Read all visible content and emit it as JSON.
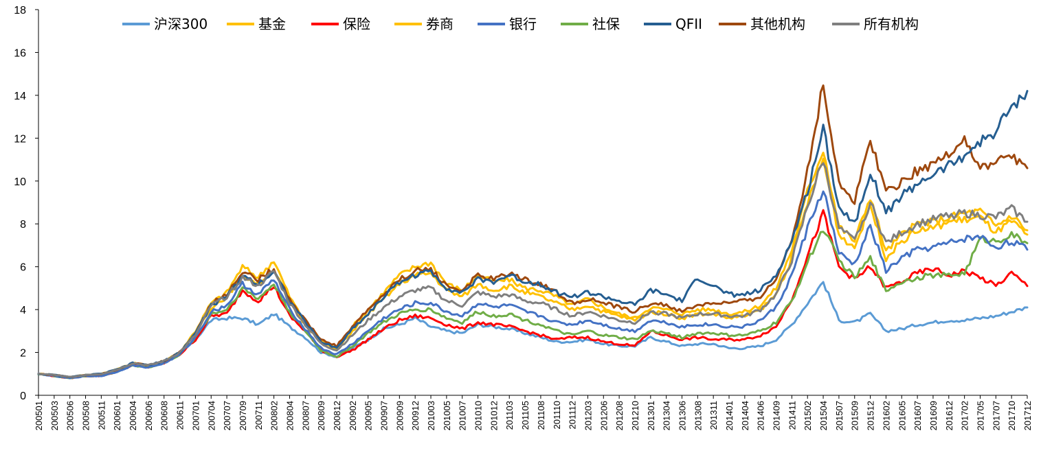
{
  "chart_data": {
    "type": "line",
    "title": "",
    "xlabel": "",
    "ylabel": "",
    "ylim": [
      0,
      18
    ],
    "yticks": [
      "0",
      "2",
      "4",
      "6",
      "8",
      "10",
      "12",
      "14",
      "16",
      "18"
    ],
    "grid": false,
    "legend_position": "top",
    "x_tick_labels": [
      "200501",
      "200503",
      "200506",
      "200508",
      "200511",
      "200601",
      "200604",
      "200606",
      "200608",
      "200611",
      "200701",
      "200704",
      "200707",
      "200709",
      "200711",
      "200802",
      "200804",
      "200807",
      "200809",
      "200812",
      "200902",
      "200905",
      "200907",
      "200909",
      "200912",
      "201003",
      "201005",
      "201007",
      "201010",
      "201012",
      "201103",
      "201105",
      "201108",
      "201110",
      "201112",
      "201203",
      "201206",
      "201208",
      "201210",
      "201301",
      "201304",
      "201306",
      "201308",
      "201311",
      "201401",
      "201404",
      "201406",
      "201409",
      "201411",
      "201502",
      "201504",
      "201507",
      "201509",
      "201512",
      "201602",
      "201605",
      "201607",
      "201609",
      "201612",
      "201702",
      "201705",
      "201707",
      "201710",
      "201712"
    ],
    "series": [
      {
        "name": "沪深300",
        "color": "#5B9BD5",
        "values": [
          1.0,
          0.9,
          0.8,
          0.9,
          0.9,
          1.1,
          1.4,
          1.3,
          1.5,
          1.9,
          2.6,
          3.5,
          3.6,
          3.6,
          3.3,
          3.8,
          3.2,
          2.7,
          2.0,
          1.8,
          2.2,
          2.6,
          3.1,
          3.3,
          3.6,
          3.2,
          3.0,
          2.9,
          3.3,
          3.2,
          3.1,
          2.9,
          2.7,
          2.5,
          2.5,
          2.6,
          2.4,
          2.3,
          2.3,
          2.7,
          2.5,
          2.3,
          2.4,
          2.4,
          2.2,
          2.2,
          2.3,
          2.6,
          3.3,
          4.3,
          5.3,
          3.5,
          3.4,
          3.8,
          3.0,
          3.1,
          3.3,
          3.4,
          3.5,
          3.5,
          3.6,
          3.7,
          3.9,
          4.1
        ]
      },
      {
        "name": "基金",
        "color": "#FFC000",
        "values": [
          1.0,
          0.95,
          0.85,
          0.95,
          1.0,
          1.2,
          1.5,
          1.4,
          1.6,
          2.0,
          3.0,
          4.3,
          4.8,
          6.0,
          5.5,
          6.3,
          4.6,
          3.4,
          2.6,
          2.2,
          3.2,
          4.0,
          4.8,
          5.6,
          6.0,
          6.2,
          5.2,
          4.9,
          5.6,
          5.3,
          5.4,
          5.0,
          4.9,
          4.6,
          4.2,
          4.5,
          4.1,
          3.8,
          3.6,
          4.1,
          4.0,
          3.8,
          4.0,
          4.0,
          3.8,
          3.9,
          4.2,
          5.0,
          6.8,
          9.5,
          11.5,
          7.9,
          7.2,
          9.3,
          6.7,
          7.5,
          8.0,
          8.1,
          8.3,
          8.5,
          8.6,
          7.9,
          8.4,
          7.7
        ]
      },
      {
        "name": "保险",
        "color": "#FF0000",
        "values": [
          1.0,
          0.9,
          0.8,
          0.9,
          0.9,
          1.1,
          1.4,
          1.3,
          1.5,
          1.9,
          2.6,
          3.7,
          3.8,
          4.9,
          4.4,
          5.1,
          3.7,
          3.0,
          2.1,
          1.8,
          2.1,
          2.6,
          3.1,
          3.5,
          3.7,
          3.6,
          3.3,
          3.1,
          3.4,
          3.3,
          3.2,
          3.0,
          2.8,
          2.6,
          2.7,
          2.7,
          2.5,
          2.4,
          2.3,
          3.0,
          2.8,
          2.6,
          2.7,
          2.6,
          2.6,
          2.6,
          2.8,
          3.2,
          4.5,
          6.5,
          8.5,
          6.0,
          5.4,
          6.0,
          5.0,
          5.3,
          5.7,
          5.9,
          5.6,
          5.8,
          5.5,
          5.1,
          5.7,
          5.1
        ]
      },
      {
        "name": "券商",
        "color": "#FFC000",
        "values": [
          1.0,
          0.95,
          0.85,
          0.95,
          1.0,
          1.2,
          1.5,
          1.4,
          1.6,
          2.0,
          2.9,
          4.1,
          4.6,
          5.6,
          5.2,
          5.9,
          4.3,
          3.3,
          2.5,
          2.1,
          3.0,
          3.8,
          4.5,
          5.2,
          5.6,
          5.7,
          4.9,
          4.6,
          5.2,
          4.9,
          5.1,
          4.8,
          4.6,
          4.3,
          4.0,
          4.2,
          3.9,
          3.7,
          3.5,
          3.9,
          3.8,
          3.6,
          3.8,
          3.8,
          3.6,
          3.7,
          4.0,
          4.7,
          6.4,
          9.0,
          11.0,
          7.5,
          6.9,
          8.9,
          6.4,
          7.2,
          7.7,
          7.8,
          8.1,
          8.2,
          8.3,
          7.6,
          8.1,
          7.5
        ]
      },
      {
        "name": "银行",
        "color": "#4472C4",
        "values": [
          1.0,
          0.9,
          0.8,
          0.9,
          0.9,
          1.1,
          1.4,
          1.3,
          1.5,
          1.9,
          2.7,
          3.9,
          4.2,
          5.2,
          4.7,
          5.4,
          4.0,
          3.1,
          2.2,
          1.9,
          2.4,
          3.0,
          3.6,
          4.0,
          4.3,
          4.3,
          3.9,
          3.7,
          4.3,
          4.1,
          4.2,
          3.9,
          3.7,
          3.4,
          3.3,
          3.5,
          3.3,
          3.1,
          3.0,
          3.5,
          3.4,
          3.2,
          3.3,
          3.3,
          3.2,
          3.2,
          3.5,
          4.1,
          5.6,
          7.8,
          9.6,
          6.6,
          6.1,
          7.9,
          5.8,
          6.4,
          6.8,
          6.9,
          7.1,
          7.3,
          7.4,
          6.9,
          7.2,
          6.8
        ]
      },
      {
        "name": "社保",
        "color": "#70AD47",
        "values": [
          1.0,
          0.9,
          0.8,
          0.9,
          0.9,
          1.1,
          1.4,
          1.3,
          1.5,
          1.9,
          2.7,
          3.8,
          4.0,
          5.0,
          4.5,
          5.2,
          3.9,
          3.0,
          2.1,
          1.8,
          2.3,
          2.9,
          3.4,
          3.8,
          4.0,
          4.0,
          3.6,
          3.4,
          3.9,
          3.7,
          3.8,
          3.5,
          3.3,
          3.0,
          2.8,
          3.0,
          2.8,
          2.7,
          2.6,
          3.0,
          2.9,
          2.7,
          2.9,
          2.9,
          2.8,
          2.8,
          3.0,
          3.4,
          4.4,
          6.2,
          7.8,
          6.3,
          5.5,
          6.4,
          4.9,
          5.3,
          5.5,
          5.6,
          5.6,
          5.7,
          7.3,
          7.2,
          7.5,
          7.1
        ]
      },
      {
        "name": "QFII",
        "color": "#255E91",
        "values": [
          1.0,
          0.95,
          0.85,
          0.95,
          1.0,
          1.2,
          1.5,
          1.4,
          1.6,
          2.0,
          2.9,
          4.2,
          4.6,
          5.6,
          5.2,
          5.8,
          4.4,
          3.4,
          2.5,
          2.2,
          3.1,
          3.8,
          4.6,
          5.3,
          5.6,
          5.8,
          5.0,
          4.8,
          5.4,
          5.3,
          5.6,
          5.3,
          5.2,
          4.8,
          4.6,
          4.8,
          4.6,
          4.4,
          4.2,
          4.9,
          4.7,
          4.4,
          5.5,
          5.1,
          4.7,
          4.7,
          4.9,
          5.6,
          7.2,
          9.5,
          12.5,
          8.8,
          8.0,
          10.5,
          8.5,
          9.3,
          9.9,
          10.3,
          10.7,
          11.2,
          11.8,
          12.3,
          13.5,
          14.2
        ]
      },
      {
        "name": "其他机构",
        "color": "#9E480E",
        "values": [
          1.0,
          0.95,
          0.85,
          0.95,
          1.0,
          1.2,
          1.5,
          1.4,
          1.6,
          2.0,
          2.9,
          4.3,
          4.7,
          5.8,
          5.4,
          5.9,
          4.5,
          3.5,
          2.6,
          2.3,
          3.2,
          4.0,
          4.7,
          5.4,
          5.8,
          5.9,
          5.1,
          4.9,
          5.6,
          5.4,
          5.7,
          5.4,
          5.2,
          4.8,
          4.3,
          4.5,
          4.3,
          4.1,
          3.9,
          4.3,
          4.2,
          3.9,
          4.2,
          4.3,
          4.3,
          4.4,
          4.6,
          5.4,
          7.3,
          10.5,
          14.5,
          10.0,
          9.0,
          12.0,
          9.5,
          10.0,
          10.5,
          10.8,
          11.3,
          12.0,
          10.5,
          10.9,
          11.2,
          10.6
        ]
      },
      {
        "name": "所有机构",
        "color": "#7F7F7F",
        "values": [
          1.0,
          0.95,
          0.85,
          0.95,
          1.0,
          1.2,
          1.5,
          1.4,
          1.6,
          2.0,
          2.8,
          4.2,
          4.6,
          5.5,
          5.1,
          5.8,
          4.3,
          3.3,
          2.4,
          2.1,
          2.8,
          3.5,
          4.1,
          4.6,
          4.9,
          5.0,
          4.4,
          4.2,
          4.8,
          4.6,
          4.7,
          4.4,
          4.3,
          4.0,
          3.7,
          3.9,
          3.7,
          3.5,
          3.4,
          3.9,
          3.8,
          3.6,
          3.8,
          3.8,
          3.7,
          3.7,
          4.0,
          4.7,
          6.3,
          8.8,
          11.0,
          7.8,
          7.2,
          9.0,
          7.1,
          7.6,
          8.0,
          8.2,
          8.4,
          8.5,
          8.4,
          8.3,
          8.7,
          8.1
        ]
      }
    ]
  }
}
